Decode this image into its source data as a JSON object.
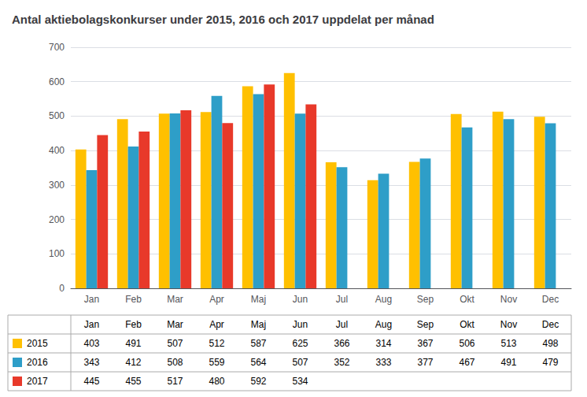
{
  "chart_data": {
    "type": "bar",
    "title": "Antal aktiebolagskonkurser under 2015, 2016 och 2017 uppdelat per månad",
    "categories": [
      "Jan",
      "Feb",
      "Mar",
      "Apr",
      "Maj",
      "Jun",
      "Jul",
      "Aug",
      "Sep",
      "Okt",
      "Nov",
      "Dec"
    ],
    "series": [
      {
        "name": "2015",
        "color": "#FFC000",
        "values": [
          403,
          491,
          507,
          512,
          587,
          625,
          366,
          314,
          367,
          506,
          513,
          498
        ]
      },
      {
        "name": "2016",
        "color": "#2E9EC8",
        "values": [
          343,
          412,
          508,
          559,
          564,
          507,
          352,
          333,
          377,
          467,
          491,
          479
        ]
      },
      {
        "name": "2017",
        "color": "#E8392A",
        "values": [
          445,
          455,
          517,
          480,
          592,
          534,
          null,
          null,
          null,
          null,
          null,
          null
        ]
      }
    ],
    "ylim": [
      0,
      700
    ],
    "yticks": [
      0,
      100,
      200,
      300,
      400,
      500,
      600,
      700
    ],
    "grid": true,
    "legend": "bottom"
  }
}
